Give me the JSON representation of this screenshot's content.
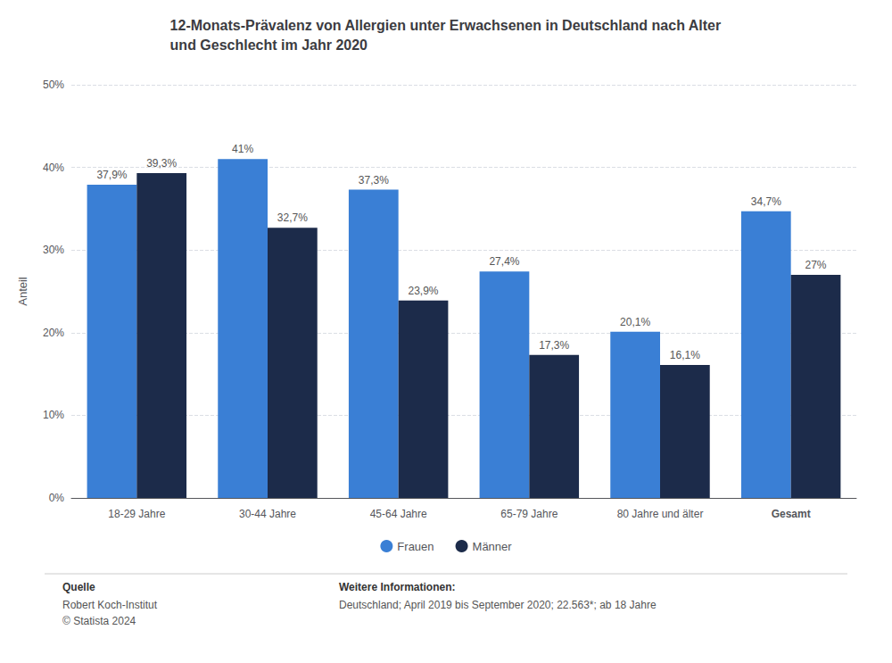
{
  "chart_data": {
    "type": "bar",
    "title": "12-Monats-Prävalenz von Allergien unter Erwachsenen in Deutschland nach Alter\nund Geschlecht im Jahr 2020",
    "categories": [
      "18-29 Jahre",
      "30-44 Jahre",
      "45-64 Jahre",
      "65-79 Jahre",
      "80 Jahre und älter",
      "Gesamt"
    ],
    "series": [
      {
        "name": "Frauen",
        "color": "#3a7fd5",
        "values": [
          37.9,
          41.0,
          37.3,
          27.4,
          20.1,
          34.7
        ],
        "value_labels": [
          "37,9%",
          "41%",
          "37,3%",
          "27,4%",
          "20,1%",
          "34,7%"
        ]
      },
      {
        "name": "Männer",
        "color": "#1c2b4a",
        "values": [
          39.3,
          32.7,
          23.9,
          17.3,
          16.1,
          27.0
        ],
        "value_labels": [
          "39,3%",
          "32,7%",
          "23,9%",
          "17,3%",
          "16,1%",
          "27%"
        ]
      }
    ],
    "ylabel": "Anteil",
    "ylim": [
      0,
      50
    ],
    "yticks": [
      {
        "value": 0,
        "label": "0%"
      },
      {
        "value": 10,
        "label": "10%"
      },
      {
        "value": 20,
        "label": "20%"
      },
      {
        "value": 30,
        "label": "30%"
      },
      {
        "value": 40,
        "label": "40%"
      },
      {
        "value": 50,
        "label": "50%"
      }
    ],
    "grid": true,
    "legend": "bottom",
    "data_labels": true,
    "annotations": [
      "Quelle",
      "Robert Koch-Institut",
      "© Statista 2024",
      "Weitere Informationen:",
      "Deutschland; April 2019 bis September 2020; 22.563*; ab 18 Jahre"
    ]
  }
}
